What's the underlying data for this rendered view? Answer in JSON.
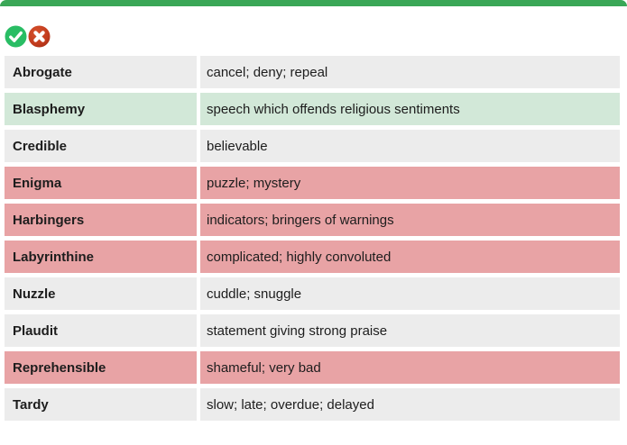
{
  "page": {
    "top_bar_color": "#3aa757",
    "background": "#ffffff"
  },
  "toolbar": {
    "correct_icon": {
      "name": "check-circle",
      "color": "#29bd64",
      "glyph_color": "#ffffff"
    },
    "incorrect_icon": {
      "name": "x-circle",
      "color": "#c23b1d",
      "color_dark": "#9c2a12",
      "glyph_color": "#ffffff"
    }
  },
  "row_colors": {
    "default": "#ececec",
    "correct": "#d2e8d8",
    "incorrect": "#e8a3a5"
  },
  "table": {
    "rows": [
      {
        "word": "Abrogate",
        "definition": "cancel; deny; repeal",
        "status": "default"
      },
      {
        "word": "Blasphemy",
        "definition": "speech which offends religious sentiments",
        "status": "correct"
      },
      {
        "word": "Credible",
        "definition": "believable",
        "status": "default"
      },
      {
        "word": "Enigma",
        "definition": "puzzle; mystery",
        "status": "incorrect"
      },
      {
        "word": "Harbingers",
        "definition": "indicators; bringers of warnings",
        "status": "incorrect"
      },
      {
        "word": "Labyrinthine",
        "definition": "complicated; highly convoluted",
        "status": "incorrect"
      },
      {
        "word": "Nuzzle",
        "definition": "cuddle; snuggle",
        "status": "default"
      },
      {
        "word": "Plaudit",
        "definition": "statement giving strong praise",
        "status": "default"
      },
      {
        "word": "Reprehensible",
        "definition": "shameful; very bad",
        "status": "incorrect"
      },
      {
        "word": "Tardy",
        "definition": "slow; late; overdue; delayed",
        "status": "default"
      }
    ]
  }
}
